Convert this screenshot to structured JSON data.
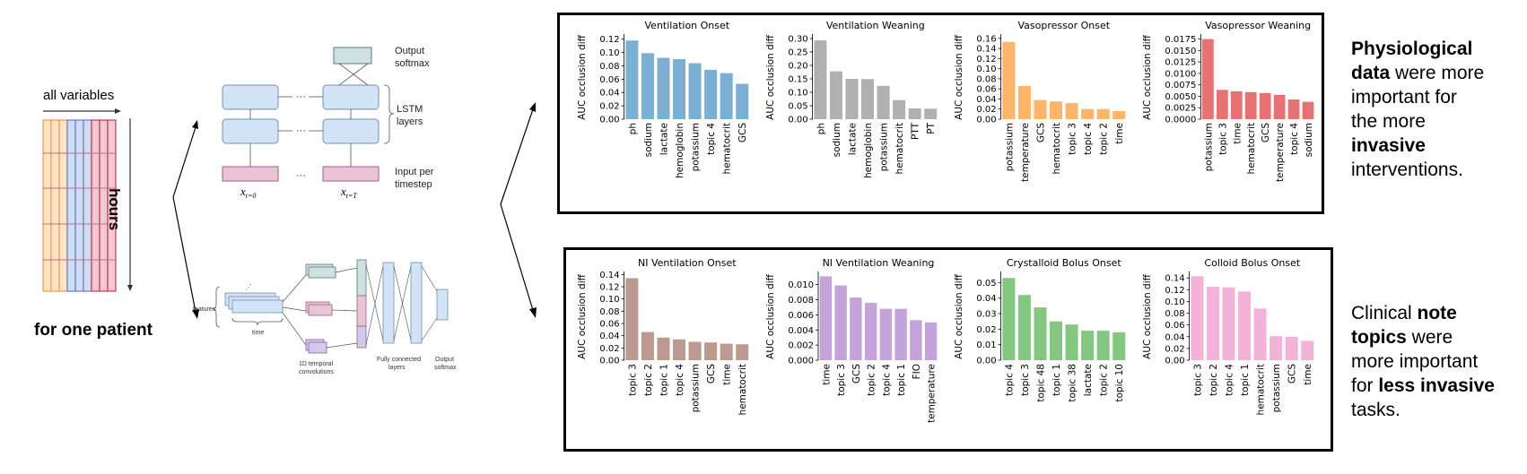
{
  "left_panel": {
    "all_variables": "all variables",
    "hours": "hours",
    "for_one_patient": "for one patient"
  },
  "lstm_diagram": {
    "output": "Output softmax",
    "output_l1": "Output",
    "output_l2": "softmax",
    "lstm_l1": "LSTM",
    "lstm_l2": "layers",
    "input_l1": "Input per",
    "input_l2": "timestep",
    "x0": "x",
    "x0_sub": "t=0",
    "xT": "x",
    "xT_sub": "t=T",
    "dots": "· · ·"
  },
  "cnn_diagram": {
    "features": "features",
    "time": "time",
    "conv_l1": "1D temporal",
    "conv_l2": "convolutions",
    "fc_l1": "Fully connected",
    "fc_l2": "layers",
    "out_l1": "Output",
    "out_l2": "softmax"
  },
  "right_text": {
    "top": [
      {
        "t": "Physiological",
        "b": true
      },
      {
        "t": "data",
        "b": true
      },
      {
        "t": " were more",
        "b": false
      },
      {
        "t": "important for",
        "b": false
      },
      {
        "t": "the more",
        "b": false
      },
      {
        "t": "invasive",
        "b": true
      },
      {
        "t": "interventions.",
        "b": false
      }
    ],
    "bottom": [
      {
        "t": "Clinical ",
        "b": false
      },
      {
        "t": "note",
        "b": true
      },
      {
        "t": "topics",
        "b": true
      },
      {
        "t": " were",
        "b": false
      },
      {
        "t": "more important",
        "b": false
      },
      {
        "t": "for ",
        "b": false
      },
      {
        "t": "less invasive",
        "b": true
      },
      {
        "t": "tasks.",
        "b": false
      }
    ]
  },
  "colors": {
    "blue": "#7bafd4",
    "gray": "#b0b0b0",
    "orange": "#fdb46b",
    "red": "#e57373",
    "brown": "#bc9a8f",
    "purple": "#c3a3d9",
    "green": "#84c780",
    "pink": "#f3b3d8"
  },
  "chart_data": [
    {
      "type": "bar",
      "title": "Ventilation Onset",
      "ylabel": "AUC occlusion diff",
      "color": "blue",
      "categories": [
        "ph",
        "sodium",
        "lactate",
        "hemoglobin",
        "potassium",
        "topic 4",
        "hematocrit",
        "GCS"
      ],
      "values": [
        0.118,
        0.099,
        0.092,
        0.09,
        0.084,
        0.074,
        0.069,
        0.053
      ],
      "ylim": [
        0,
        0.125
      ],
      "ticks": [
        0.0,
        0.02,
        0.04,
        0.06,
        0.08,
        0.1,
        0.12
      ],
      "tick_labels": [
        "0.00",
        "0.02",
        "0.04",
        "0.06",
        "0.08",
        "0.10",
        "0.12"
      ]
    },
    {
      "type": "bar",
      "title": "Ventilation Weaning",
      "ylabel": "AUC occlusion diff",
      "color": "gray",
      "categories": [
        "ph",
        "sodium",
        "lactate",
        "hemoglobin",
        "potassium",
        "hematocrit",
        "PTT",
        "PT"
      ],
      "values": [
        0.293,
        0.178,
        0.15,
        0.149,
        0.124,
        0.071,
        0.04,
        0.039
      ],
      "ylim": [
        0,
        0.31
      ],
      "ticks": [
        0.0,
        0.05,
        0.1,
        0.15,
        0.2,
        0.25,
        0.3
      ],
      "tick_labels": [
        "0.00",
        "0.05",
        "0.10",
        "0.15",
        "0.20",
        "0.25",
        "0.30"
      ]
    },
    {
      "type": "bar",
      "title": "Vasopressor Onset",
      "ylabel": "AUC occlusion diff",
      "color": "orange",
      "categories": [
        "potassium",
        "temperature",
        "GCS",
        "hematocrit",
        "topic 3",
        "topic 4",
        "topic 2",
        "time"
      ],
      "values": [
        0.153,
        0.066,
        0.038,
        0.035,
        0.032,
        0.02,
        0.02,
        0.016
      ],
      "ylim": [
        0,
        0.165
      ],
      "ticks": [
        0.0,
        0.02,
        0.04,
        0.06,
        0.08,
        0.1,
        0.12,
        0.14,
        0.16
      ],
      "tick_labels": [
        "0.00",
        "0.02",
        "0.04",
        "0.06",
        "0.08",
        "0.10",
        "0.12",
        "0.14",
        "0.16"
      ]
    },
    {
      "type": "bar",
      "title": "Vasopressor Weaning",
      "ylabel": "AUC occlusion diff",
      "color": "red",
      "categories": [
        "potassium",
        "topic 3",
        "time",
        "hematocrit",
        "GCS",
        "temperature",
        "topic 4",
        "sodium"
      ],
      "values": [
        0.0175,
        0.0064,
        0.0061,
        0.0059,
        0.0057,
        0.0053,
        0.0043,
        0.0038
      ],
      "ylim": [
        0,
        0.0182
      ],
      "ticks": [
        0.0,
        0.0025,
        0.005,
        0.0075,
        0.01,
        0.0125,
        0.015,
        0.0175
      ],
      "tick_labels": [
        "0.0000",
        "0.0025",
        "0.0050",
        "0.0075",
        "0.0100",
        "0.0125",
        "0.0150",
        "0.0175"
      ]
    },
    {
      "type": "bar",
      "title": "NI Ventilation Onset",
      "ylabel": "AUC occlusion diff",
      "color": "brown",
      "categories": [
        "topic 3",
        "topic 2",
        "topic 1",
        "topic 4",
        "potassium",
        "GCS",
        "time",
        "hematocrit"
      ],
      "values": [
        0.134,
        0.046,
        0.037,
        0.034,
        0.03,
        0.029,
        0.027,
        0.026
      ],
      "ylim": [
        0,
        0.142
      ],
      "ticks": [
        0.0,
        0.02,
        0.04,
        0.06,
        0.08,
        0.1,
        0.12,
        0.14
      ],
      "tick_labels": [
        "0.00",
        "0.02",
        "0.04",
        "0.06",
        "0.08",
        "0.10",
        "0.12",
        "0.14"
      ]
    },
    {
      "type": "bar",
      "title": "NI Ventilation Weaning",
      "ylabel": "AUC occlusion diff",
      "color": "purple",
      "categories": [
        "time",
        "topic 3",
        "GCS",
        "topic 2",
        "topic 4",
        "topic 1",
        "FIO",
        "temperature"
      ],
      "values": [
        0.0111,
        0.0099,
        0.0083,
        0.0076,
        0.0068,
        0.0068,
        0.0053,
        0.005
      ],
      "ylim": [
        0,
        0.0115
      ],
      "ticks": [
        0.0,
        0.002,
        0.004,
        0.006,
        0.008,
        0.01
      ],
      "tick_labels": [
        "0.000",
        "0.002",
        "0.004",
        "0.006",
        "0.008",
        "0.010"
      ]
    },
    {
      "type": "bar",
      "title": "Crystalloid Bolus Onset",
      "ylabel": "AUC occlusion diff",
      "color": "green",
      "categories": [
        "topic 4",
        "topic 3",
        "topic 48",
        "topic 1",
        "topic 38",
        "lactate",
        "topic 2",
        "topic 10"
      ],
      "values": [
        0.053,
        0.042,
        0.034,
        0.025,
        0.023,
        0.019,
        0.019,
        0.018
      ],
      "ylim": [
        0,
        0.056
      ],
      "ticks": [
        0.0,
        0.01,
        0.02,
        0.03,
        0.04,
        0.05
      ],
      "tick_labels": [
        "0.00",
        "0.01",
        "0.02",
        "0.03",
        "0.04",
        "0.05"
      ]
    },
    {
      "type": "bar",
      "title": "Colloid Bolus Onset",
      "ylabel": "AUC occlusion diff",
      "color": "pink",
      "categories": [
        "topic 3",
        "topic 2",
        "topic 4",
        "topic 1",
        "hematocrit",
        "potassium",
        "GCS",
        "time"
      ],
      "values": [
        0.143,
        0.125,
        0.124,
        0.117,
        0.088,
        0.041,
        0.04,
        0.033
      ],
      "ylim": [
        0,
        0.148
      ],
      "ticks": [
        0.0,
        0.02,
        0.04,
        0.06,
        0.08,
        0.1,
        0.12,
        0.14
      ],
      "tick_labels": [
        "0.00",
        "0.02",
        "0.04",
        "0.06",
        "0.08",
        "0.10",
        "0.12",
        "0.14"
      ]
    }
  ]
}
